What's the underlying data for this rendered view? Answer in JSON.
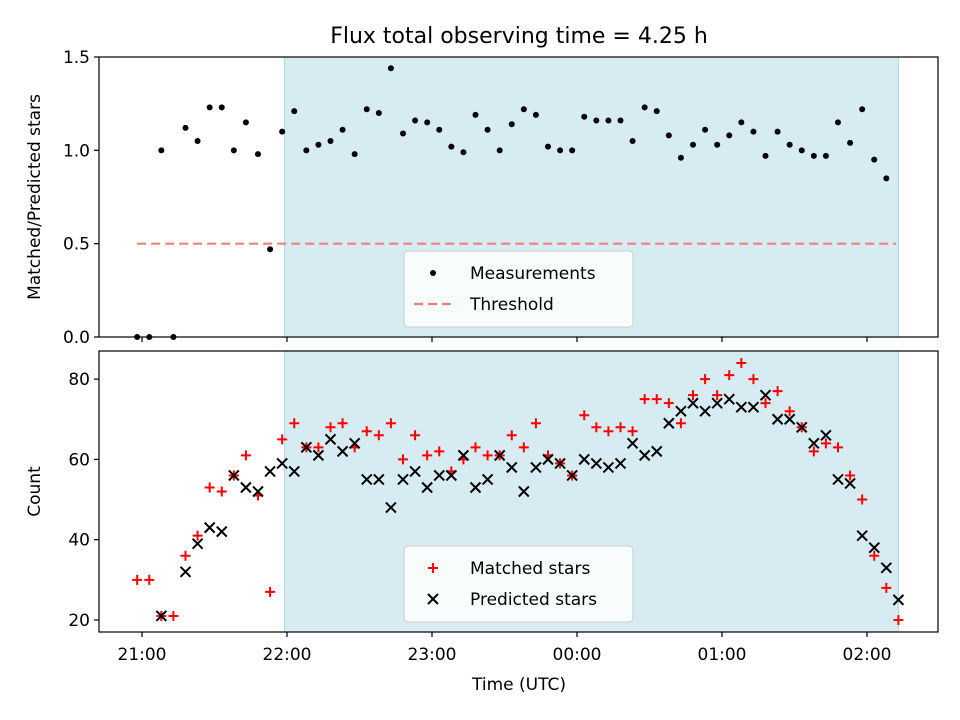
{
  "title": "Flux total observing time = 4.25 h",
  "xlabel": "Time (UTC)",
  "x_ticks": [
    "21:00",
    "22:00",
    "23:00",
    "00:00",
    "01:00",
    "02:00"
  ],
  "colors": {
    "shade": "#add8e6",
    "matched": "#ff0000",
    "predicted": "#000000",
    "threshold": "#f08080",
    "measurement": "#000000"
  },
  "chart_data": [
    {
      "type": "scatter",
      "ylabel": "Matched/Predicted stars",
      "ylim": [
        0,
        1.5
      ],
      "y_ticks": [
        "0.0",
        "0.5",
        "1.0",
        "1.5"
      ],
      "shaded_interval": {
        "start": "21:59",
        "end": "02:13"
      },
      "threshold": {
        "name": "Threshold",
        "value": 0.5,
        "x_start": "20:58",
        "x_end": "02:12"
      },
      "legend_position": "lower-center",
      "series": [
        {
          "name": "Measurements",
          "x": [
            "20:58",
            "21:03",
            "21:08",
            "21:13",
            "21:18",
            "21:23",
            "21:28",
            "21:33",
            "21:38",
            "21:43",
            "21:48",
            "21:53",
            "21:58",
            "22:03",
            "22:08",
            "22:13",
            "22:18",
            "22:23",
            "22:28",
            "22:33",
            "22:38",
            "22:43",
            "22:48",
            "22:53",
            "22:58",
            "23:03",
            "23:08",
            "23:13",
            "23:18",
            "23:23",
            "23:28",
            "23:33",
            "23:38",
            "23:43",
            "23:48",
            "23:53",
            "23:58",
            "00:03",
            "00:08",
            "00:13",
            "00:18",
            "00:23",
            "00:28",
            "00:33",
            "00:38",
            "00:43",
            "00:48",
            "00:53",
            "00:58",
            "01:03",
            "01:08",
            "01:13",
            "01:18",
            "01:23",
            "01:28",
            "01:33",
            "01:38",
            "01:43",
            "01:48",
            "01:53",
            "01:58",
            "02:03",
            "02:08"
          ],
          "y": [
            0.0,
            0.0,
            1.0,
            0.0,
            1.12,
            1.05,
            1.23,
            1.23,
            1.0,
            1.15,
            0.98,
            0.47,
            1.1,
            1.21,
            1.0,
            1.03,
            1.05,
            1.11,
            0.98,
            1.22,
            1.2,
            1.44,
            1.09,
            1.16,
            1.15,
            1.11,
            1.02,
            0.99,
            1.19,
            1.11,
            1.0,
            1.14,
            1.22,
            1.19,
            1.02,
            1.0,
            1.0,
            1.18,
            1.16,
            1.16,
            1.16,
            1.05,
            1.23,
            1.21,
            1.08,
            0.96,
            1.03,
            1.11,
            1.03,
            1.08,
            1.15,
            1.1,
            0.97,
            1.1,
            1.03,
            1.0,
            0.97,
            0.97,
            1.15,
            1.04,
            1.22,
            0.95,
            0.85
          ]
        }
      ]
    },
    {
      "type": "scatter",
      "ylabel": "Count",
      "ylim": [
        17,
        87
      ],
      "y_ticks": [
        "20",
        "40",
        "60",
        "80"
      ],
      "shaded_interval": {
        "start": "21:59",
        "end": "02:13"
      },
      "legend_position": "lower-center",
      "series": [
        {
          "name": "Matched stars",
          "marker": "plus",
          "x": [
            "20:58",
            "21:03",
            "21:08",
            "21:13",
            "21:18",
            "21:23",
            "21:28",
            "21:33",
            "21:38",
            "21:43",
            "21:48",
            "21:53",
            "21:58",
            "22:03",
            "22:08",
            "22:13",
            "22:18",
            "22:23",
            "22:28",
            "22:33",
            "22:38",
            "22:43",
            "22:48",
            "22:53",
            "22:58",
            "23:03",
            "23:08",
            "23:13",
            "23:18",
            "23:23",
            "23:28",
            "23:33",
            "23:38",
            "23:43",
            "23:48",
            "23:53",
            "23:58",
            "00:03",
            "00:08",
            "00:13",
            "00:18",
            "00:23",
            "00:28",
            "00:33",
            "00:38",
            "00:43",
            "00:48",
            "00:53",
            "00:58",
            "01:03",
            "01:08",
            "01:13",
            "01:18",
            "01:23",
            "01:28",
            "01:33",
            "01:38",
            "01:43",
            "01:48",
            "01:53",
            "01:58",
            "02:03",
            "02:08",
            "02:13"
          ],
          "y": [
            30,
            30,
            21,
            21,
            36,
            41,
            53,
            52,
            56,
            61,
            51,
            27,
            65,
            69,
            63,
            63,
            68,
            69,
            63,
            67,
            66,
            69,
            60,
            66,
            61,
            62,
            57,
            60,
            63,
            61,
            61,
            66,
            63,
            69,
            61,
            59,
            56,
            71,
            68,
            67,
            68,
            67,
            75,
            75,
            74,
            69,
            76,
            80,
            76,
            81,
            84,
            80,
            74,
            77,
            72,
            68,
            62,
            64,
            63,
            56,
            50,
            36,
            28,
            20
          ]
        },
        {
          "name": "Predicted stars",
          "marker": "x",
          "x": [
            "21:08",
            "21:18",
            "21:23",
            "21:28",
            "21:33",
            "21:38",
            "21:43",
            "21:48",
            "21:53",
            "21:58",
            "22:03",
            "22:08",
            "22:13",
            "22:18",
            "22:23",
            "22:28",
            "22:33",
            "22:38",
            "22:43",
            "22:48",
            "22:53",
            "22:58",
            "23:03",
            "23:08",
            "23:13",
            "23:18",
            "23:23",
            "23:28",
            "23:33",
            "23:38",
            "23:43",
            "23:48",
            "23:53",
            "23:58",
            "00:03",
            "00:08",
            "00:13",
            "00:18",
            "00:23",
            "00:28",
            "00:33",
            "00:38",
            "00:43",
            "00:48",
            "00:53",
            "00:58",
            "01:03",
            "01:08",
            "01:13",
            "01:18",
            "01:23",
            "01:28",
            "01:33",
            "01:38",
            "01:43",
            "01:48",
            "01:53",
            "01:58",
            "02:03",
            "02:08",
            "02:13"
          ],
          "y": [
            21,
            32,
            39,
            43,
            42,
            56,
            53,
            52,
            57,
            59,
            57,
            63,
            61,
            65,
            62,
            64,
            55,
            55,
            48,
            55,
            57,
            53,
            56,
            56,
            61,
            53,
            55,
            61,
            58,
            52,
            58,
            60,
            59,
            56,
            60,
            59,
            58,
            59,
            64,
            61,
            62,
            69,
            72,
            74,
            72,
            74,
            75,
            73,
            73,
            76,
            70,
            70,
            68,
            64,
            66,
            55,
            54,
            41,
            38,
            33,
            25
          ]
        }
      ]
    }
  ]
}
